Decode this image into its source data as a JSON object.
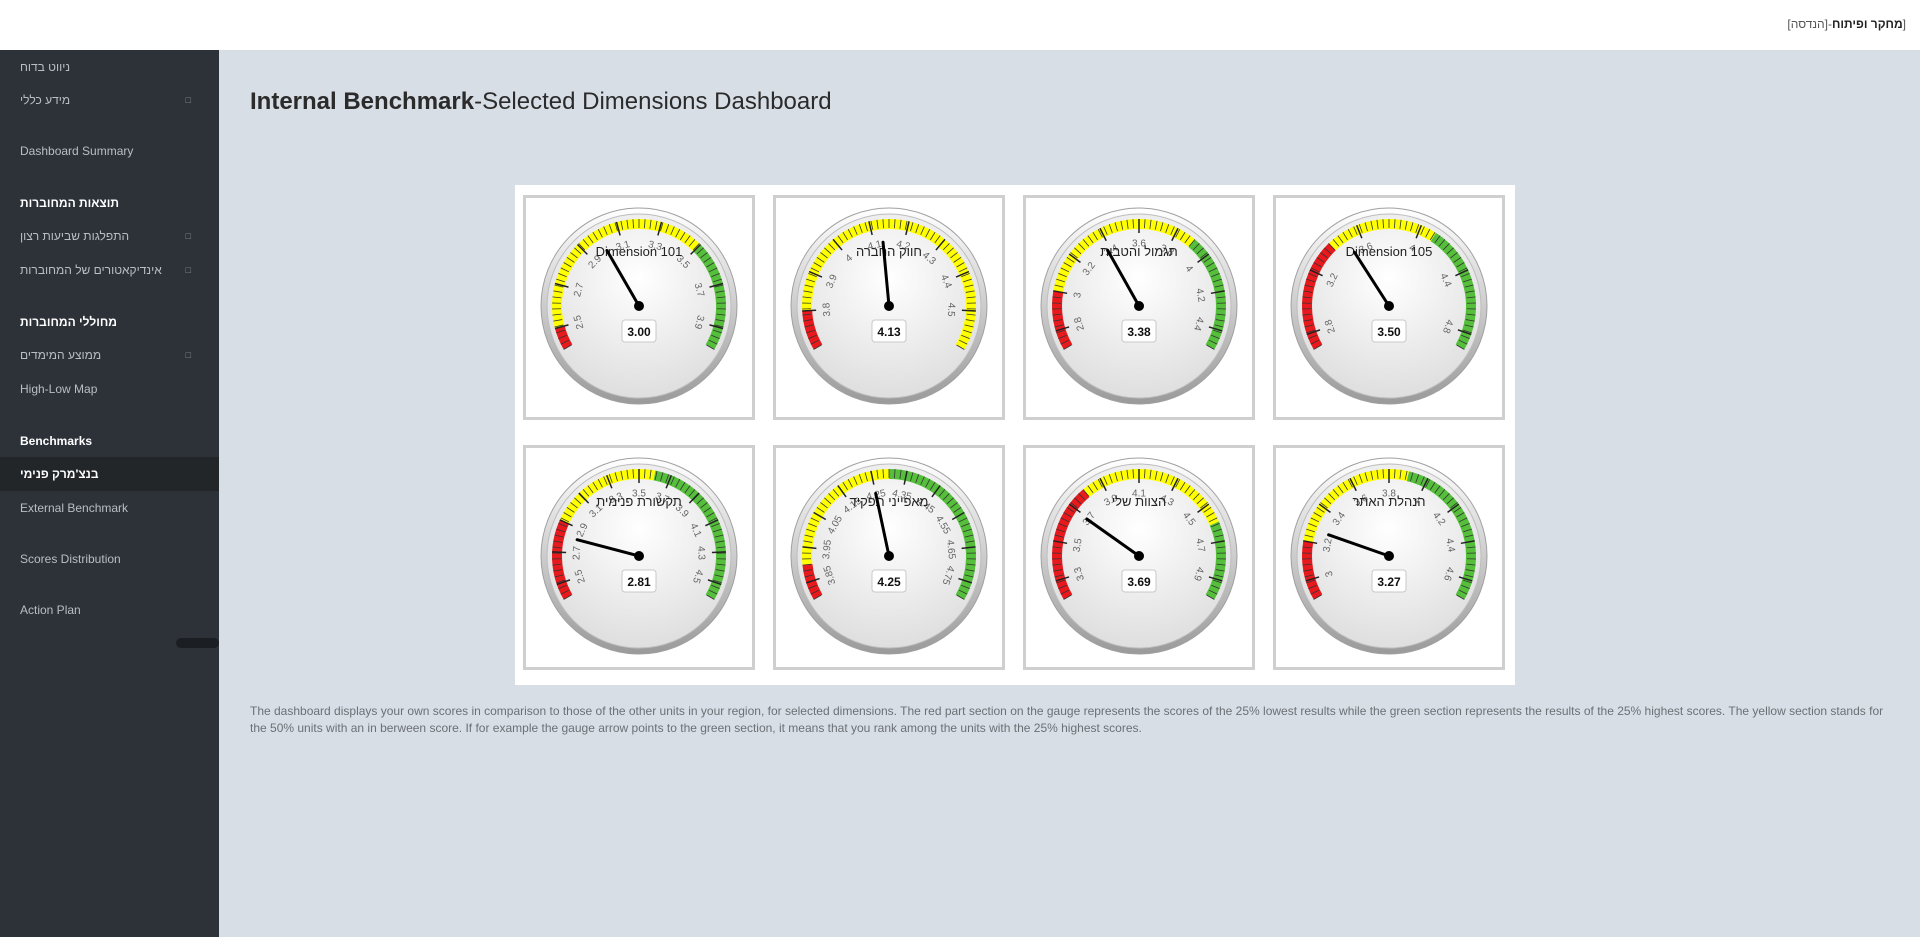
{
  "header": {
    "org_bold": "מחקר ופיתוח",
    "org_rest": "-[הנדסה]"
  },
  "sidebar": {
    "items": [
      {
        "label": "ניווט בדוח",
        "expandable": false
      },
      {
        "label": "מידע כללי",
        "expandable": true
      },
      {
        "label": "Dashboard Summary",
        "expandable": false
      },
      {
        "label": "התפלגות שביעות רצון",
        "expandable": true
      },
      {
        "label": "אינדיקאטורים של המחוברות",
        "expandable": true
      },
      {
        "label": "ממוצע המימדים",
        "expandable": true
      },
      {
        "label": "High-Low Map",
        "expandable": false
      },
      {
        "label": "בנצ'מרק פנימי",
        "expandable": false,
        "active": true
      },
      {
        "label": "External Benchmark",
        "expandable": false
      },
      {
        "label": "Scores Distribution",
        "expandable": false
      },
      {
        "label": "Action Plan",
        "expandable": false
      }
    ],
    "headings": [
      "תוצאות המחוברות",
      "מחוללי המחוברות",
      "Benchmarks"
    ],
    "expand_glyph": "□"
  },
  "page": {
    "title_bold": "Internal Benchmark",
    "title_rest": "-Selected Dimensions Dashboard",
    "description": "The dashboard displays your own scores in comparison to those of the other units in your region, for selected dimensions. The red part section on the gauge represents the scores of the 25% lowest results while the green section represents the results of the 25% highest scores. The yellow section stands for the 50% units with an in berween score. If for example the gauge arrow points to the green section, it means that you rank among the units with the 25% highest scores."
  },
  "colors": {
    "red": "#e8191c",
    "yellow": "#ffff00",
    "green": "#55bf3b",
    "needle": "#000000"
  },
  "gauges": [
    {
      "title": "Dimension 101",
      "value": 3.0,
      "display": "3.00",
      "min": 2.4,
      "max": 4.0,
      "ticks": [
        "2.5",
        "2.7",
        "2.9",
        "3.1",
        "3.3",
        "3.5",
        "3.7",
        "3.9"
      ],
      "bands": [
        [
          2.4,
          2.5,
          "red"
        ],
        [
          2.5,
          3.5,
          "yellow"
        ],
        [
          3.5,
          4.0,
          "green"
        ]
      ]
    },
    {
      "title": "חווק החברה",
      "value": 4.13,
      "display": "4.13",
      "min": 3.7,
      "max": 4.6,
      "ticks": [
        "3.8",
        "3.9",
        "4",
        "4.1",
        "4.2",
        "4.3",
        "4.4",
        "4.5"
      ],
      "bands": [
        [
          3.7,
          3.8,
          "red"
        ],
        [
          3.8,
          4.6,
          "yellow"
        ]
      ]
    },
    {
      "title": "תגמול והטבות",
      "value": 3.38,
      "display": "3.38",
      "min": 2.7,
      "max": 4.5,
      "ticks": [
        "2.8",
        "3",
        "3.2",
        "3.4",
        "3.6",
        "3.8",
        "4",
        "4.2",
        "4.4"
      ],
      "bands": [
        [
          2.7,
          3.0,
          "red"
        ],
        [
          3.0,
          3.9,
          "yellow"
        ],
        [
          3.9,
          4.5,
          "green"
        ]
      ]
    },
    {
      "title": "Dimension 105",
      "value": 3.5,
      "display": "3.50",
      "min": 2.7,
      "max": 4.9,
      "ticks": [
        "2.8",
        "3.2",
        "3.6",
        "4",
        "4.4",
        "4.8"
      ],
      "bands": [
        [
          2.7,
          3.4,
          "red"
        ],
        [
          3.4,
          4.1,
          "yellow"
        ],
        [
          4.1,
          4.9,
          "green"
        ]
      ]
    },
    {
      "title": "תקשורת פנימית",
      "value": 2.81,
      "display": "2.81",
      "min": 2.4,
      "max": 4.6,
      "ticks": [
        "2.5",
        "2.7",
        "2.9",
        "3.1",
        "3.3",
        "3.5",
        "3.7",
        "3.9",
        "4.1",
        "4.3",
        "4.5"
      ],
      "bands": [
        [
          2.4,
          2.9,
          "red"
        ],
        [
          2.9,
          3.6,
          "yellow"
        ],
        [
          3.6,
          4.6,
          "green"
        ]
      ]
    },
    {
      "title": "מאפייני תפקיד",
      "value": 4.25,
      "display": "4.25",
      "min": 3.8,
      "max": 4.8,
      "ticks": [
        "3.85",
        "3.95",
        "4.05",
        "4.15",
        "4.25",
        "4.35",
        "4.45",
        "4.55",
        "4.65",
        "4.75"
      ],
      "bands": [
        [
          3.8,
          3.9,
          "red"
        ],
        [
          3.9,
          4.3,
          "yellow"
        ],
        [
          4.3,
          4.8,
          "green"
        ]
      ]
    },
    {
      "title": "הצוות שלי",
      "value": 3.69,
      "display": "3.69",
      "min": 3.2,
      "max": 5.0,
      "ticks": [
        "3.3",
        "3.5",
        "3.7",
        "3.9",
        "4.1",
        "4.3",
        "4.5",
        "4.7",
        "4.9"
      ],
      "bands": [
        [
          3.2,
          3.8,
          "red"
        ],
        [
          3.8,
          4.6,
          "yellow"
        ],
        [
          4.6,
          5.0,
          "green"
        ]
      ]
    },
    {
      "title": "הנהלת האתר",
      "value": 3.27,
      "display": "3.27",
      "min": 2.9,
      "max": 4.7,
      "ticks": [
        "3",
        "3.2",
        "3.4",
        "3.6",
        "3.8",
        "4",
        "4.2",
        "4.4",
        "4.6"
      ],
      "bands": [
        [
          2.9,
          3.2,
          "red"
        ],
        [
          3.2,
          3.9,
          "yellow"
        ],
        [
          3.9,
          4.7,
          "green"
        ]
      ]
    }
  ]
}
